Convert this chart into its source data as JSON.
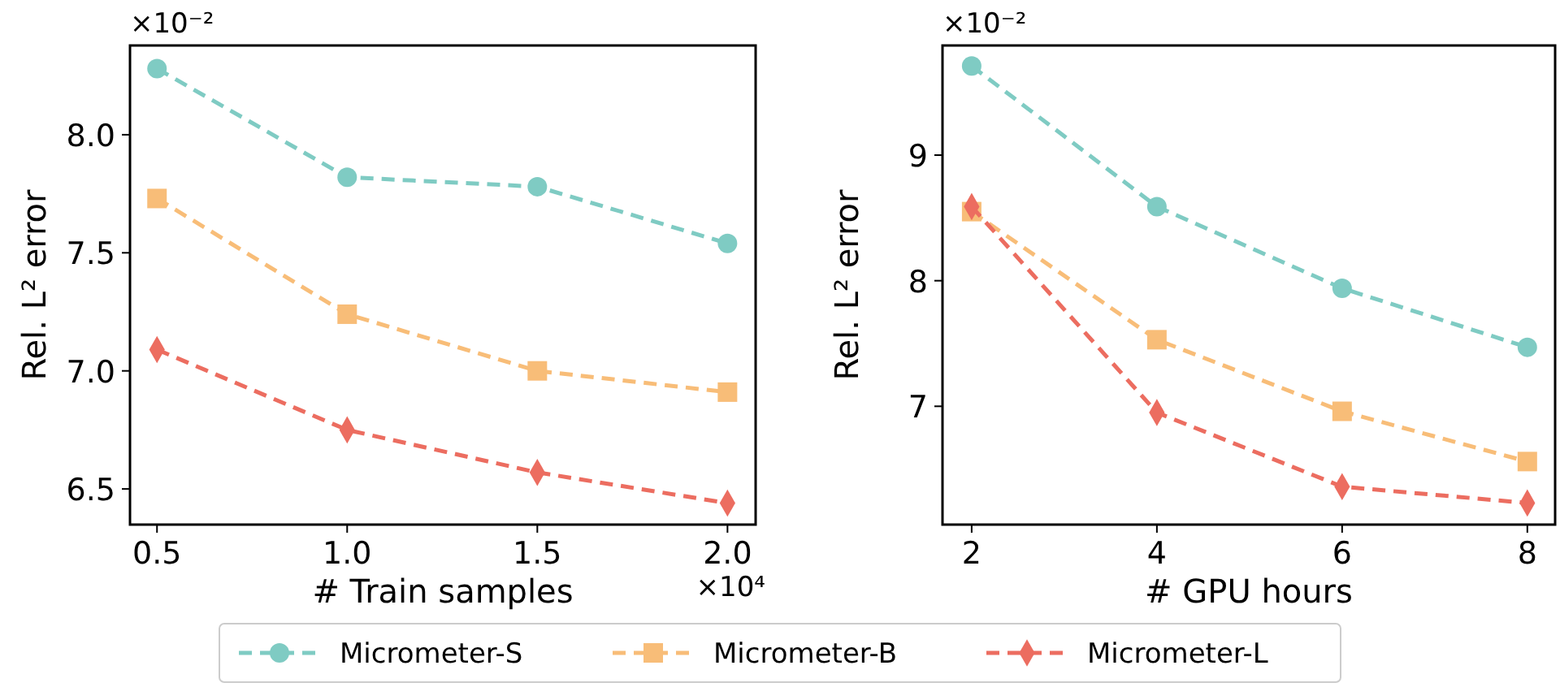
{
  "chart_data": [
    {
      "type": "line",
      "xlabel": "#  Train samples",
      "ylabel": "Rel. L² error",
      "annotations": [
        "×10⁻²",
        "×10⁴"
      ],
      "line_style": "dashed",
      "legend": "bottom",
      "xlim": [
        0.429,
        2.074
      ],
      "xticks": [
        {
          "value": 0.5,
          "label": "0.5"
        },
        {
          "value": 1.0,
          "label": "1.0"
        },
        {
          "value": 1.5,
          "label": "1.5"
        },
        {
          "value": 2.0,
          "label": "2.0"
        }
      ],
      "ylim": [
        6.349,
        8.378
      ],
      "yticks": [
        {
          "value": 6.5,
          "label": "6.5"
        },
        {
          "value": 7.0,
          "label": "7.0"
        },
        {
          "value": 7.5,
          "label": "7.5"
        },
        {
          "value": 8.0,
          "label": "8.0"
        }
      ],
      "x": [
        0.5,
        1.0,
        1.5,
        2.0
      ],
      "series": [
        {
          "name": "Micrometer-S",
          "color": "#7fcbc3",
          "marker": "circle",
          "values": [
            8.28,
            7.82,
            7.78,
            7.54
          ]
        },
        {
          "name": "Micrometer-B",
          "color": "#f8bd78",
          "marker": "square",
          "values": [
            7.73,
            7.24,
            7.0,
            6.91
          ]
        },
        {
          "name": "Micrometer-L",
          "color": "#ec6d60",
          "marker": "diamond",
          "values": [
            7.09,
            6.75,
            6.57,
            6.44
          ]
        }
      ]
    },
    {
      "type": "line",
      "xlabel": "# GPU hours",
      "ylabel": "Rel. L² error",
      "annotations": [
        "×10⁻²"
      ],
      "line_style": "dashed",
      "xlim": [
        1.685,
        8.3
      ],
      "xticks": [
        2,
        4,
        6,
        8
      ],
      "ylim": [
        6.058,
        9.873
      ],
      "yticks": [
        7,
        8,
        9
      ],
      "x": [
        2,
        4,
        6,
        8
      ],
      "series": [
        {
          "color": "#7fcbc3",
          "marker": "circle",
          "values": [
            9.71,
            8.59,
            7.94,
            7.47
          ]
        },
        {
          "color": "#f8bd78",
          "marker": "square",
          "values": [
            8.55,
            7.53,
            6.96,
            6.56
          ]
        },
        {
          "color": "#ec6d60",
          "marker": "diamond",
          "values": [
            8.59,
            6.95,
            6.36,
            6.23
          ]
        }
      ]
    }
  ]
}
